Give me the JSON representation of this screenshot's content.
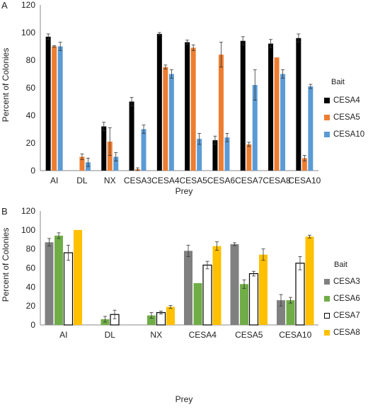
{
  "chart_data": [
    {
      "panel": "A",
      "type": "bar",
      "xlabel": "Prey",
      "ylabel": "Percent of Colonies",
      "ylim": [
        0,
        120
      ],
      "yticks": [
        0,
        20,
        40,
        60,
        80,
        100,
        120
      ],
      "grid": false,
      "legend_title": "Bait",
      "legend_position": "right",
      "categories": [
        "AI",
        "DL",
        "NX",
        "CESA3",
        "CESA4",
        "CESA5",
        "CESA6",
        "CESA7",
        "CESA8",
        "CESA10"
      ],
      "series": [
        {
          "name": "CESA4",
          "color": "#000000",
          "fill": "#000000",
          "values": [
            97,
            null,
            32,
            50,
            99,
            93,
            22,
            94,
            92,
            96
          ],
          "errors": [
            2,
            null,
            3,
            3,
            1,
            1.5,
            3,
            3,
            3,
            3
          ]
        },
        {
          "name": "CESA5",
          "color": "#ED7D31",
          "fill": "#ED7D31",
          "values": [
            90,
            10,
            21,
            1,
            75,
            89,
            84,
            19,
            82,
            9
          ],
          "errors": [
            0.5,
            2,
            10,
            1,
            1.5,
            2,
            9,
            1.5,
            0,
            2
          ]
        },
        {
          "name": "CESA10",
          "color": "#5B9BD5",
          "fill": "#5B9BD5",
          "values": [
            90,
            6,
            10,
            30,
            70,
            23,
            24,
            62,
            70,
            61
          ],
          "errors": [
            3,
            3,
            3,
            3,
            3,
            4,
            3,
            11,
            3,
            1.5
          ]
        }
      ]
    },
    {
      "panel": "B",
      "type": "bar",
      "xlabel": "Prey",
      "ylabel": "Percent of Colonies",
      "ylim": [
        0,
        120
      ],
      "yticks": [
        0,
        20,
        40,
        60,
        80,
        100,
        120
      ],
      "grid": false,
      "legend_title": "Bait",
      "legend_position": "right",
      "categories": [
        "AI",
        "DL",
        "NX",
        "CESA4",
        "CESA5",
        "CESA10"
      ],
      "series": [
        {
          "name": "CESA3",
          "color": "#808080",
          "fill": "#808080",
          "values": [
            87,
            null,
            null,
            78,
            85,
            26
          ],
          "errors": [
            4,
            null,
            null,
            6,
            1.5,
            6
          ]
        },
        {
          "name": "CESA6",
          "color": "#70AD47",
          "fill": "#70AD47",
          "values": [
            94,
            6,
            10,
            44,
            43,
            26
          ],
          "errors": [
            3,
            3,
            3,
            0,
            4.5,
            3
          ]
        },
        {
          "name": "CESA7",
          "color": "#000000",
          "fill": "#ffffff",
          "values": [
            76,
            11,
            13,
            63,
            54,
            65
          ],
          "errors": [
            8,
            4.5,
            1.5,
            4,
            2.5,
            7
          ]
        },
        {
          "name": "CESA8",
          "color": "#FFC000",
          "fill": "#FFC000",
          "values": [
            100,
            null,
            19,
            83,
            74,
            93
          ],
          "errors": [
            0,
            null,
            1.5,
            4.5,
            6,
            1.5
          ]
        }
      ]
    }
  ],
  "panels": {
    "a": {
      "letter": "A",
      "ylabel": "Percent of Colonies",
      "xlabel": "Prey",
      "legend_title": "Bait",
      "legend": [
        "CESA4",
        "CESA5",
        "CESA10"
      ]
    },
    "b": {
      "letter": "B",
      "ylabel": "Percent of Colonies",
      "xlabel": "Prey",
      "legend_title": "Bait",
      "legend": [
        "CESA3",
        "CESA6",
        "CESA7",
        "CESA8"
      ]
    }
  }
}
